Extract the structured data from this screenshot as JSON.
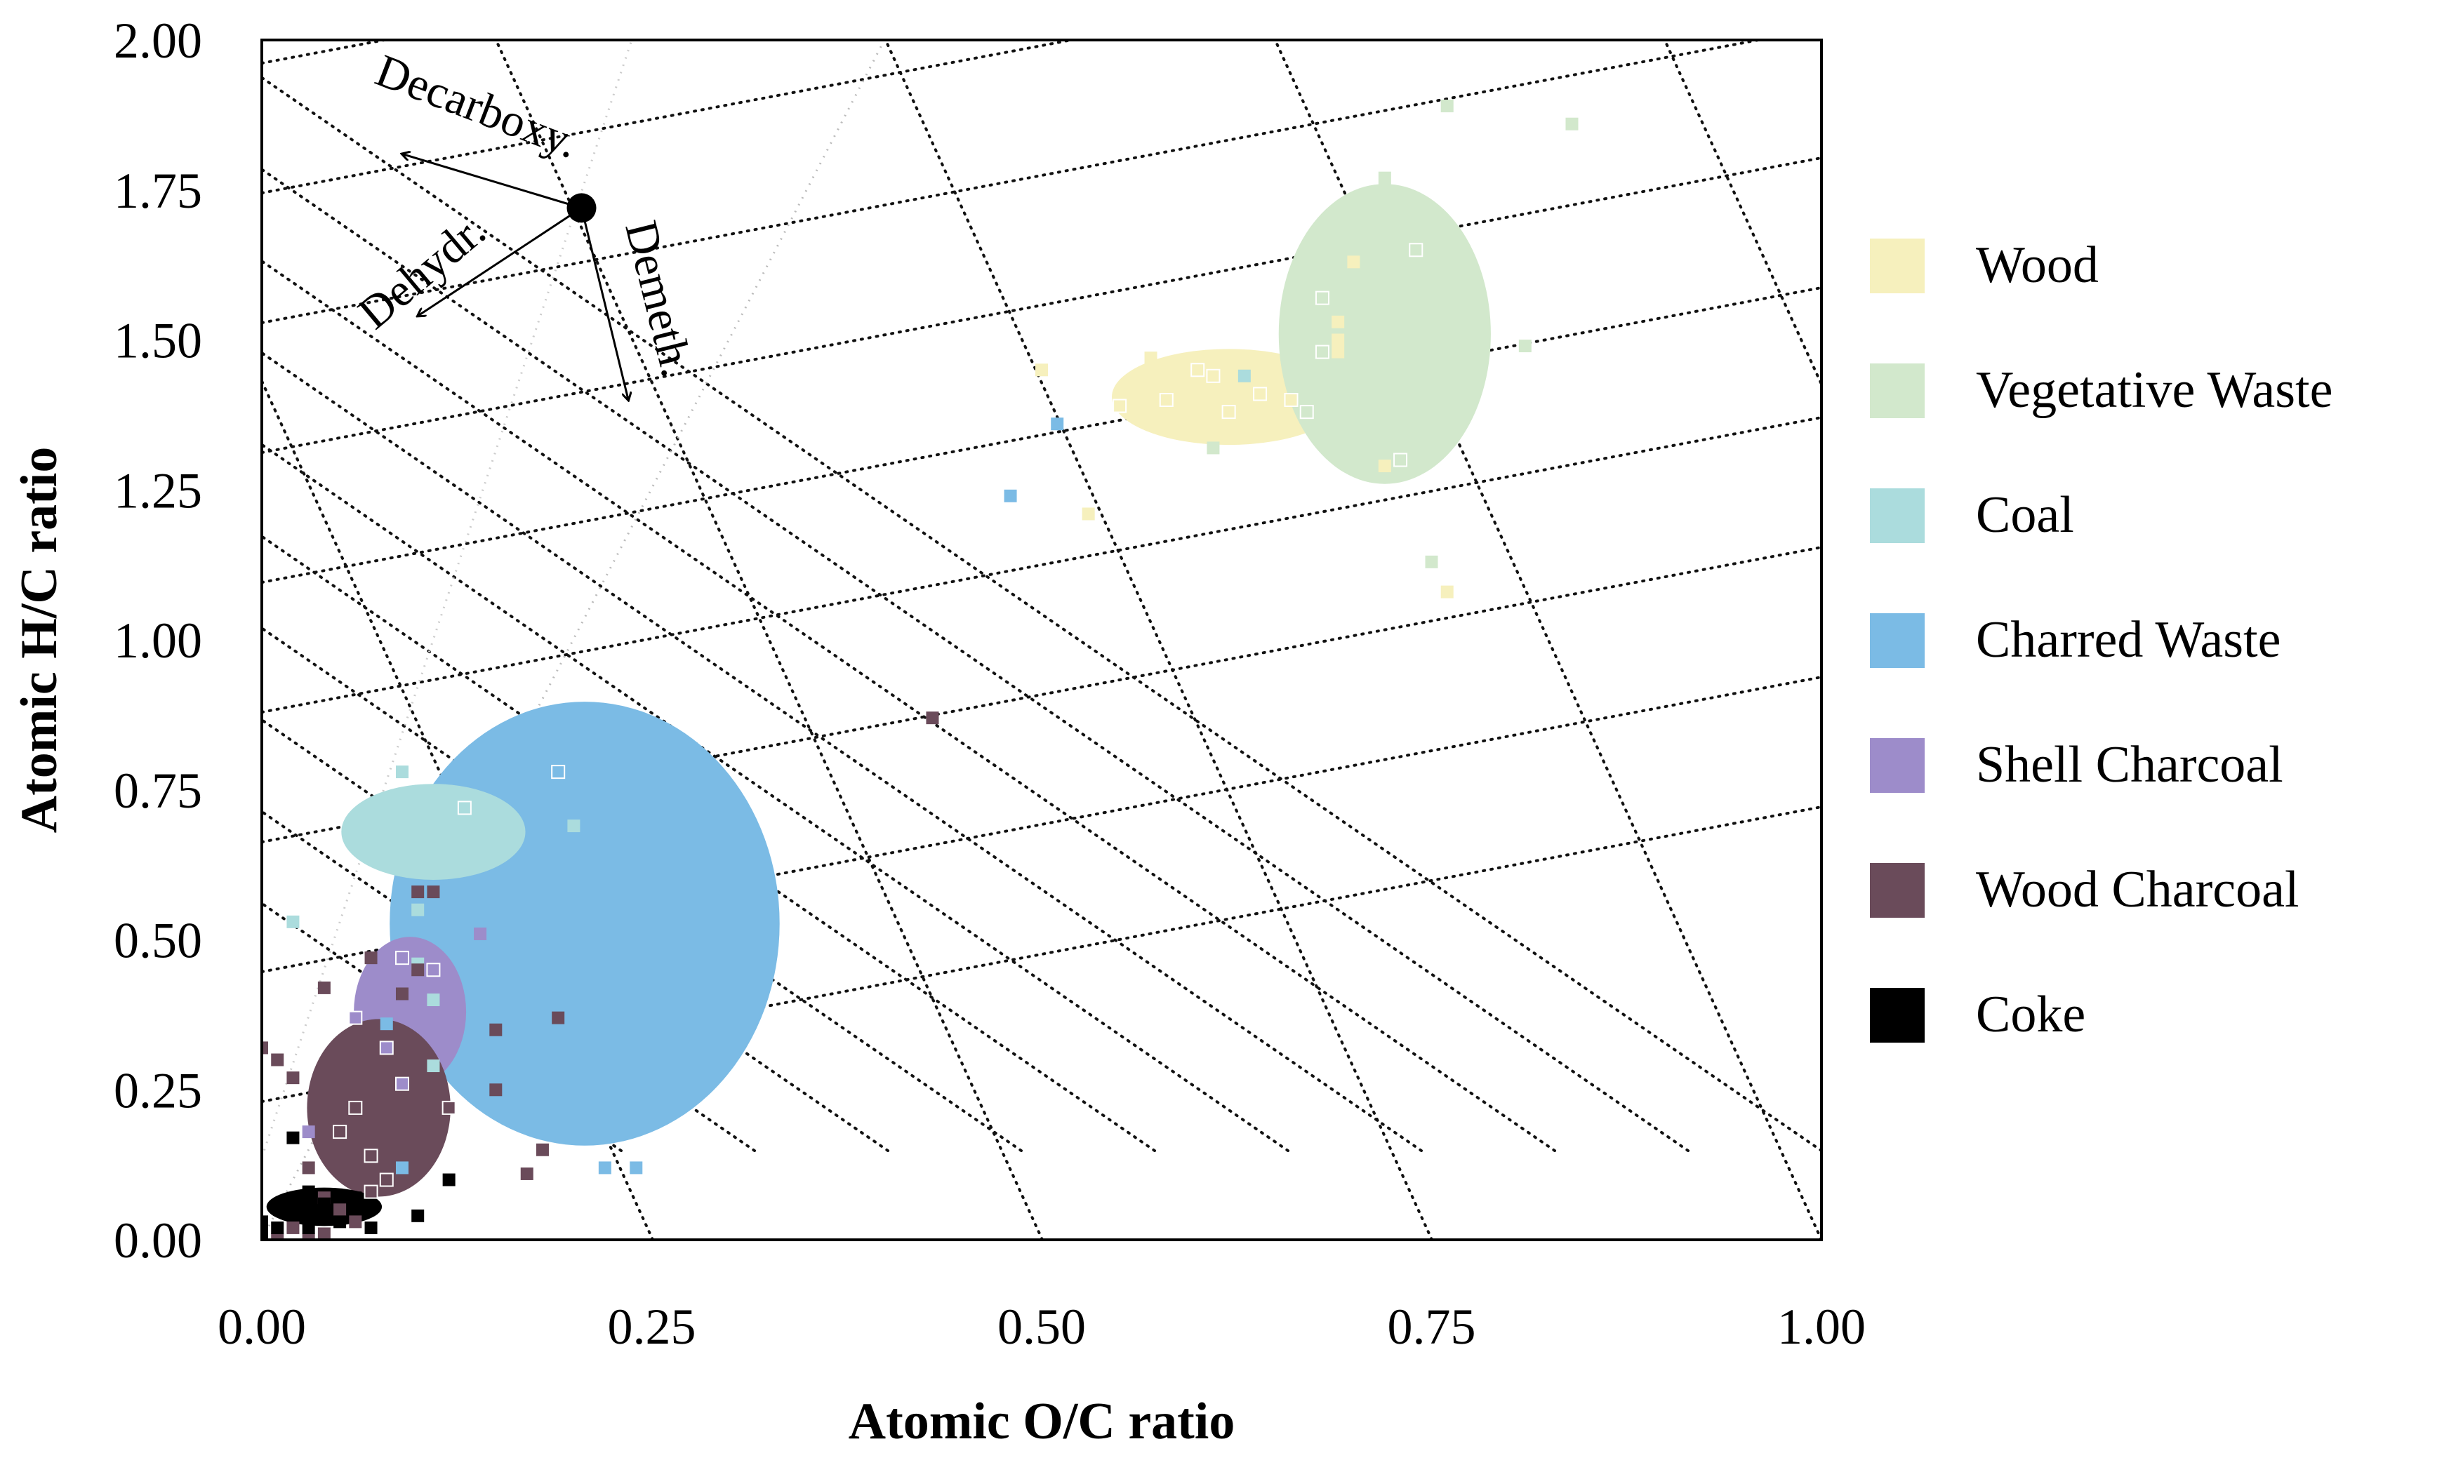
{
  "chart_data": {
    "type": "scatter",
    "title": "",
    "xlabel": "Atomic O/C ratio",
    "ylabel": "Atomic H/C ratio",
    "xlim": [
      0,
      1
    ],
    "ylim": [
      0,
      2
    ],
    "x_ticks": [
      "0.00",
      "0.25",
      "0.50",
      "0.75",
      "1.00"
    ],
    "y_ticks": [
      "0.00",
      "0.25",
      "0.50",
      "0.75",
      "1.00",
      "1.25",
      "1.50",
      "1.75",
      "2.00"
    ],
    "legend_position": "right",
    "series": [
      {
        "name": "Wood",
        "color": "#f6f0bd",
        "ellipse": {
          "cx": 0.62,
          "cy": 1.405,
          "rx": 0.075,
          "ry": 0.08
        },
        "points": [
          [
            0.5,
            1.45
          ],
          [
            0.55,
            1.39
          ],
          [
            0.57,
            1.47
          ],
          [
            0.58,
            1.4
          ],
          [
            0.6,
            1.45
          ],
          [
            0.61,
            1.44
          ],
          [
            0.62,
            1.38
          ],
          [
            0.64,
            1.41
          ],
          [
            0.66,
            1.4
          ],
          [
            0.69,
            1.48
          ],
          [
            0.69,
            1.5
          ],
          [
            0.69,
            1.53
          ],
          [
            0.7,
            1.63
          ],
          [
            0.72,
            1.29
          ],
          [
            0.53,
            1.21
          ],
          [
            0.76,
            1.08
          ]
        ]
      },
      {
        "name": "Vegetative Waste",
        "color": "#d2e8cc",
        "ellipse": {
          "cx": 0.72,
          "cy": 1.51,
          "rx": 0.068,
          "ry": 0.25
        },
        "points": [
          [
            0.76,
            1.89
          ],
          [
            0.84,
            1.86
          ],
          [
            0.72,
            1.77
          ],
          [
            0.74,
            1.65
          ],
          [
            0.68,
            1.57
          ],
          [
            0.68,
            1.48
          ],
          [
            0.81,
            1.49
          ],
          [
            0.67,
            1.38
          ],
          [
            0.61,
            1.32
          ],
          [
            0.73,
            1.3
          ],
          [
            0.75,
            1.13
          ]
        ]
      },
      {
        "name": "Coal",
        "color": "#abdcdd",
        "ellipse": {
          "cx": 0.11,
          "cy": 0.68,
          "rx": 0.059,
          "ry": 0.08
        },
        "points": [
          [
            0.09,
            0.78
          ],
          [
            0.02,
            0.53
          ],
          [
            0.13,
            0.72
          ],
          [
            0.2,
            0.69
          ],
          [
            0.11,
            0.4
          ],
          [
            0.1,
            0.46
          ],
          [
            0.11,
            0.29
          ],
          [
            0.63,
            1.44
          ],
          [
            0.1,
            0.55
          ]
        ]
      },
      {
        "name": "Charred Waste",
        "color": "#7bbbe5",
        "ellipse": {
          "cx": 0.207,
          "cy": 0.527,
          "rx": 0.125,
          "ry": 0.37
        },
        "points": [
          [
            0.19,
            0.78
          ],
          [
            0.51,
            1.36
          ],
          [
            0.48,
            1.24
          ],
          [
            0.22,
            0.12
          ],
          [
            0.24,
            0.12
          ],
          [
            0.09,
            0.12
          ],
          [
            0.08,
            0.36
          ]
        ]
      },
      {
        "name": "Shell Charcoal",
        "color": "#9d8cca",
        "ellipse": {
          "cx": 0.095,
          "cy": 0.38,
          "rx": 0.036,
          "ry": 0.125
        },
        "points": [
          [
            0.14,
            0.51
          ],
          [
            0.09,
            0.47
          ],
          [
            0.08,
            0.32
          ],
          [
            0.09,
            0.26
          ],
          [
            0.03,
            0.18
          ],
          [
            0.06,
            0.37
          ],
          [
            0.11,
            0.45
          ]
        ]
      },
      {
        "name": "Wood Charcoal",
        "color": "#6a4b5a",
        "ellipse": {
          "cx": 0.075,
          "cy": 0.22,
          "rx": 0.046,
          "ry": 0.148
        },
        "points": [
          [
            0.43,
            0.87
          ],
          [
            0.1,
            0.58
          ],
          [
            0.11,
            0.58
          ],
          [
            0.0,
            0.32
          ],
          [
            0.01,
            0.3
          ],
          [
            0.02,
            0.27
          ],
          [
            0.04,
            0.42
          ],
          [
            0.07,
            0.47
          ],
          [
            0.1,
            0.45
          ],
          [
            0.09,
            0.41
          ],
          [
            0.12,
            0.22
          ],
          [
            0.15,
            0.35
          ],
          [
            0.15,
            0.25
          ],
          [
            0.19,
            0.37
          ],
          [
            0.18,
            0.15
          ],
          [
            0.17,
            0.11
          ],
          [
            0.03,
            0.12
          ],
          [
            0.05,
            0.18
          ],
          [
            0.06,
            0.22
          ],
          [
            0.07,
            0.14
          ],
          [
            0.08,
            0.1
          ],
          [
            0.04,
            0.07
          ],
          [
            0.05,
            0.05
          ],
          [
            0.02,
            0.02
          ],
          [
            0.01,
            0.0
          ],
          [
            0.03,
            0.0
          ],
          [
            0.04,
            0.01
          ],
          [
            0.06,
            0.03
          ],
          [
            0.07,
            0.08
          ]
        ]
      },
      {
        "name": "Coke",
        "color": "#000000",
        "ellipse": {
          "cx": 0.04,
          "cy": 0.055,
          "rx": 0.037,
          "ry": 0.032
        },
        "points": [
          [
            0.0,
            0.03
          ],
          [
            0.01,
            0.02
          ],
          [
            0.02,
            0.05
          ],
          [
            0.03,
            0.02
          ],
          [
            0.04,
            0.06
          ],
          [
            0.05,
            0.03
          ],
          [
            0.06,
            0.07
          ],
          [
            0.07,
            0.02
          ],
          [
            0.02,
            0.17
          ],
          [
            0.12,
            0.1
          ],
          [
            0.1,
            0.04
          ],
          [
            0.0,
            0.01
          ],
          [
            0.03,
            0.08
          ]
        ]
      }
    ],
    "annotations": {
      "origin_point": [
        0.205,
        1.72
      ],
      "arrows": [
        {
          "label": "Decarboxy.",
          "to": [
            0.09,
            1.81
          ]
        },
        {
          "label": "Dehydr.",
          "to": [
            0.1,
            1.54
          ]
        },
        {
          "label": "Demeth.",
          "to": [
            0.235,
            1.4
          ]
        }
      ]
    }
  }
}
